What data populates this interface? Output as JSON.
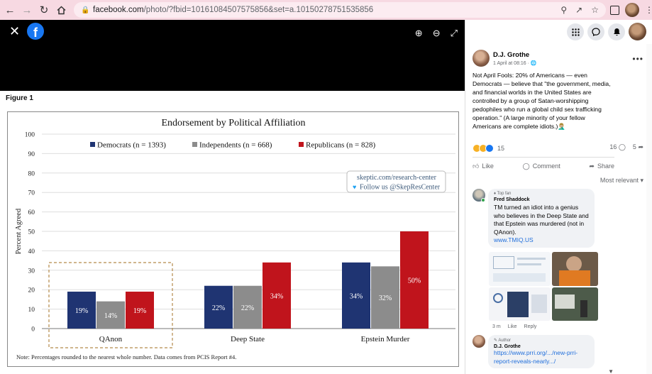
{
  "browser": {
    "url_host": "facebook.com",
    "url_path": "/photo/?fbid=10161084507575856&set=a.10150278751535856"
  },
  "viewer": {
    "figure_label": "Figure 1",
    "note": "Note: Percentages rounded to the nearest whole number. Data comes from PCIS Report #4."
  },
  "chart_data": {
    "type": "bar",
    "title": "Endorsement by Political Affiliation",
    "ylabel": "Percent Agreed",
    "xlabel": "",
    "ylim": [
      0,
      100
    ],
    "yticks": [
      "0",
      "10",
      "20",
      "30",
      "40",
      "50",
      "60",
      "70",
      "80",
      "90",
      "100"
    ],
    "grid": true,
    "legend_position": "top",
    "categories": [
      "QAnon",
      "Deep State",
      "Epstein Murder"
    ],
    "series": [
      {
        "name": "Democrats (n = 1393)",
        "color": "#1f3472",
        "values": [
          19,
          22,
          34
        ],
        "labels": [
          "19%",
          "22%",
          "34%"
        ]
      },
      {
        "name": "Independents (n = 668)",
        "color": "#8c8c8c",
        "values": [
          14,
          22,
          32
        ],
        "labels": [
          "14%",
          "22%",
          "32%"
        ]
      },
      {
        "name": "Republicans (n = 828)",
        "color": "#c0141c",
        "values": [
          19,
          34,
          50
        ],
        "labels": [
          "19%",
          "34%",
          "50%"
        ]
      }
    ],
    "highlighted_category": "QAnon",
    "watermark_line1": "skeptic.com/research-center",
    "watermark_line2": "Follow us @SkepResCenter"
  },
  "post": {
    "author": "D.J. Grothe",
    "time": "1 April at 08:16 · ",
    "text": "Not April Fools: 20% of Americans — even Democrats — believe that \"the government, media, and financial worlds in the United States are controlled by a group of Satan-worshipping pedophiles who run a global child sex trafficking operation.\" (A large minority of your fellow Americans are complete idiots.)🤦🏼‍♂️",
    "reaction_count": "15",
    "comment_count": "16",
    "share_count": "5",
    "like_label": "Like",
    "comment_label": "Comment",
    "share_label": "Share",
    "sort_label": "Most relevant"
  },
  "comments": [
    {
      "tag": "Top fan",
      "name": "Fred Shaddock",
      "text": "TM turned an idiot into a genius who believes in the Deep State and that Epstein was murdered (not in QAnon).",
      "link": "www.TMIQ.US",
      "time": "3 m",
      "like": "Like",
      "reply": "Reply"
    },
    {
      "tag": "Author",
      "name": "D.J. Grothe",
      "link": "https://www.prri.org/.../new-prri-report-reveals-nearly.../"
    }
  ],
  "colors": {
    "brand": "#1877f2",
    "link": "#216fdb",
    "browser_bar": "#f7d9e2"
  }
}
